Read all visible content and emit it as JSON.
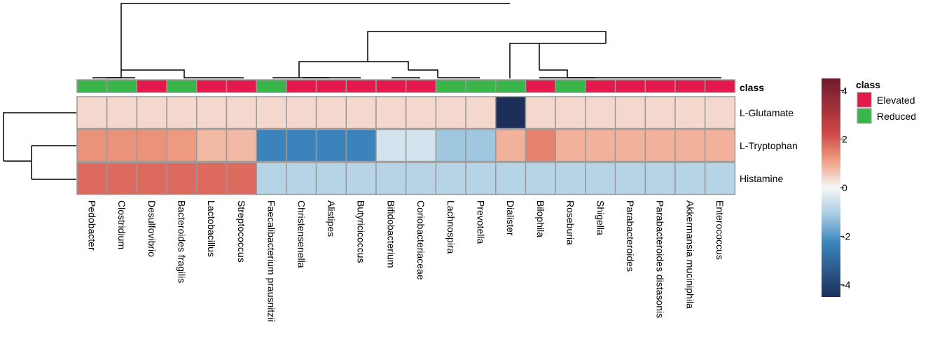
{
  "chart_data": {
    "type": "heatmap",
    "title": "",
    "rows": [
      "L-Glutamate",
      "L-Tryptophan",
      "Histamine"
    ],
    "columns": [
      "Pedobacter",
      "Clostridium",
      "Desulfovibrio",
      "Bacteroides fragilis",
      "Lactobacillus",
      "Streptococcus",
      "Faecalibacterium prausnitzii",
      "Christensenella",
      "Alistipes",
      "Butyricicoccus",
      "Bifidobacterium",
      "Coriobacteriaceae",
      "Lachnospira",
      "Prevotella",
      "Dialister",
      "Bilophila",
      "Roseburia",
      "Shigella",
      "Parabacteroides",
      "Parabacteroides distasonis",
      "Akkermansia muciniphila",
      "Enterococcus"
    ],
    "column_class": [
      "Reduced",
      "Reduced",
      "Elevated",
      "Reduced",
      "Elevated",
      "Elevated",
      "Reduced",
      "Elevated",
      "Elevated",
      "Elevated",
      "Elevated",
      "Elevated",
      "Reduced",
      "Reduced",
      "Reduced",
      "Elevated",
      "Reduced",
      "Elevated",
      "Elevated",
      "Elevated",
      "Elevated",
      "Elevated"
    ],
    "values": [
      [
        0.4,
        0.4,
        0.4,
        0.4,
        0.4,
        0.4,
        0.4,
        0.4,
        0.4,
        0.4,
        0.4,
        0.4,
        0.4,
        0.4,
        -4.5,
        0.4,
        0.4,
        0.4,
        0.4,
        0.4,
        0.4,
        0.4
      ],
      [
        1.3,
        1.3,
        1.3,
        1.2,
        0.8,
        0.8,
        -2.3,
        -2.3,
        -2.3,
        -2.3,
        -0.5,
        -0.5,
        -1.2,
        -1.2,
        0.9,
        1.5,
        0.9,
        0.9,
        0.9,
        0.9,
        0.9,
        0.9
      ],
      [
        1.8,
        1.8,
        1.8,
        1.8,
        1.8,
        1.8,
        -0.9,
        -0.9,
        -0.9,
        -0.9,
        -0.9,
        -0.9,
        -0.9,
        -0.9,
        -0.9,
        -0.9,
        -0.9,
        -0.9,
        -0.9,
        -0.9,
        -0.9,
        -0.9
      ]
    ],
    "color_scale": {
      "min": -4.5,
      "max": 4.5,
      "ticks": [
        4,
        2,
        0,
        -2,
        -4
      ],
      "ticks_label": [
        "4",
        "2",
        "0",
        "-2",
        "-4"
      ]
    },
    "annotation": {
      "track_label": "class",
      "legend_title": "class",
      "legend_entries": [
        {
          "name": "Elevated",
          "color": "#e3194b"
        },
        {
          "name": "Reduced",
          "color": "#3ab54a"
        }
      ]
    },
    "colors": {
      "low": "#1c2f5a",
      "mid": "#f6f6f6",
      "high": "#7a1a2a",
      "grid": "#9a9a9a",
      "elevated": "#e3194b",
      "reduced": "#3ab54a"
    }
  }
}
